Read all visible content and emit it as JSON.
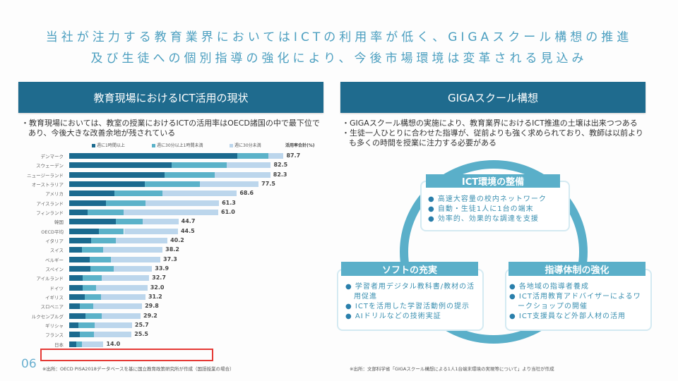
{
  "title": {
    "line1": "当社が注力する教育業界においてはICTの利用率が低く、GIGAスクール構想の推進",
    "line2": "及び生徒への個別指導の強化により、今後市場環境は変革される見込み"
  },
  "left": {
    "header": "教育現場におけるICT活用の現状",
    "bullet": "・教育現場においては、教室の授業におけるICTの活用率はOECD諸国の中で最下位であり、今後大きな改善余地が残されている",
    "footnote": "※出所：OECD PISA2018データベースを基に国立教育政策研究所が作成（国語授業の場合）"
  },
  "page_number": "06",
  "chart_data": {
    "type": "bar",
    "orientation": "horizontal",
    "stacked": true,
    "legend": [
      "週に1時間以上",
      "週に30分以上1時間未満",
      "週に30分未満"
    ],
    "total_label": "活用率合計(%)",
    "colors": [
      "#1b6a8f",
      "#5bb2c9",
      "#bcd6ec"
    ],
    "categories": [
      "デンマーク",
      "スウェーデン",
      "ニュージーランド",
      "オーストラリア",
      "アメリカ",
      "アイスランド",
      "フィンランド",
      "韓国",
      "OECD平均",
      "イタリア",
      "スイス",
      "ベルギー",
      "スペイン",
      "アイルランド",
      "ドイツ",
      "イギリス",
      "スロベニア",
      "ルクセンブルグ",
      "ギリシャ",
      "フランス",
      "日本"
    ],
    "series": [
      {
        "name": "週に1時間以上",
        "values": [
          68.7,
          41.8,
          38.9,
          30.8,
          18.5,
          15.1,
          7.5,
          19.0,
          12.0,
          9.1,
          5.2,
          8.3,
          8.7,
          5.4,
          5.4,
          6.5,
          4.3,
          6.7,
          3.8,
          4.2,
          2.8
        ]
      },
      {
        "name": "週に30分以上1時間未満",
        "values": [
          12.9,
          22.7,
          20.7,
          22.6,
          19.6,
          16.2,
          14.8,
          11.1,
          10.4,
          9.9,
          8.6,
          8.8,
          9.4,
          7.8,
          5.5,
          6.6,
          5.4,
          6.6,
          6.7,
          5.9,
          2.5
        ]
      },
      {
        "name": "週に30分未満",
        "values": [
          6.1,
          18.0,
          22.7,
          24.1,
          30.5,
          30.0,
          38.7,
          14.6,
          22.1,
          21.2,
          24.4,
          20.2,
          15.8,
          19.5,
          21.1,
          18.1,
          20.1,
          15.9,
          15.2,
          15.4,
          8.7
        ]
      }
    ],
    "totals": [
      "87.7",
      "82.5",
      "82.3",
      "77.5",
      "68.6",
      "61.3",
      "61.0",
      "44.7",
      "44.5",
      "40.2",
      "38.2",
      "37.3",
      "33.9",
      "32.7",
      "32.0",
      "31.2",
      "29.8",
      "29.2",
      "25.7",
      "25.5",
      "14.0"
    ],
    "highlight": "日本"
  },
  "right": {
    "header": "GIGAスクール構想",
    "bullets": [
      "・GIGAスクール構想の実施により、教育業界におけるICT推進の土壌は出来つつある",
      "・生徒一人ひとりに合わせた指導が、従前よりも強く求められており、教師は以前よりも多くの時間を授業に注力する必要がある"
    ],
    "boxes": [
      {
        "title": "ICT環境の整備",
        "items": [
          "高速大容量の校内ネットワーク",
          "自動・生徒1人に1台の端末",
          "効率的、効果的な調達を支援"
        ]
      },
      {
        "title": "ソフトの充実",
        "items": [
          "学習者用デジタル教科書/教材の活用促進",
          "ICTを活用した学習活動例の提示",
          "AIドリルなどの技術実証"
        ]
      },
      {
        "title": "指導体制の強化",
        "items": [
          "各地域の指導者養成",
          "ICT活用教育アドバイザーによるワークショップの開催",
          "ICT支援員など外部人材の活用"
        ]
      }
    ],
    "bullet_char": "●",
    "footnote": "※出所：文部科学省「GIGAスクール構想による1人1台端末環境の実現等について」より当社が作成"
  }
}
